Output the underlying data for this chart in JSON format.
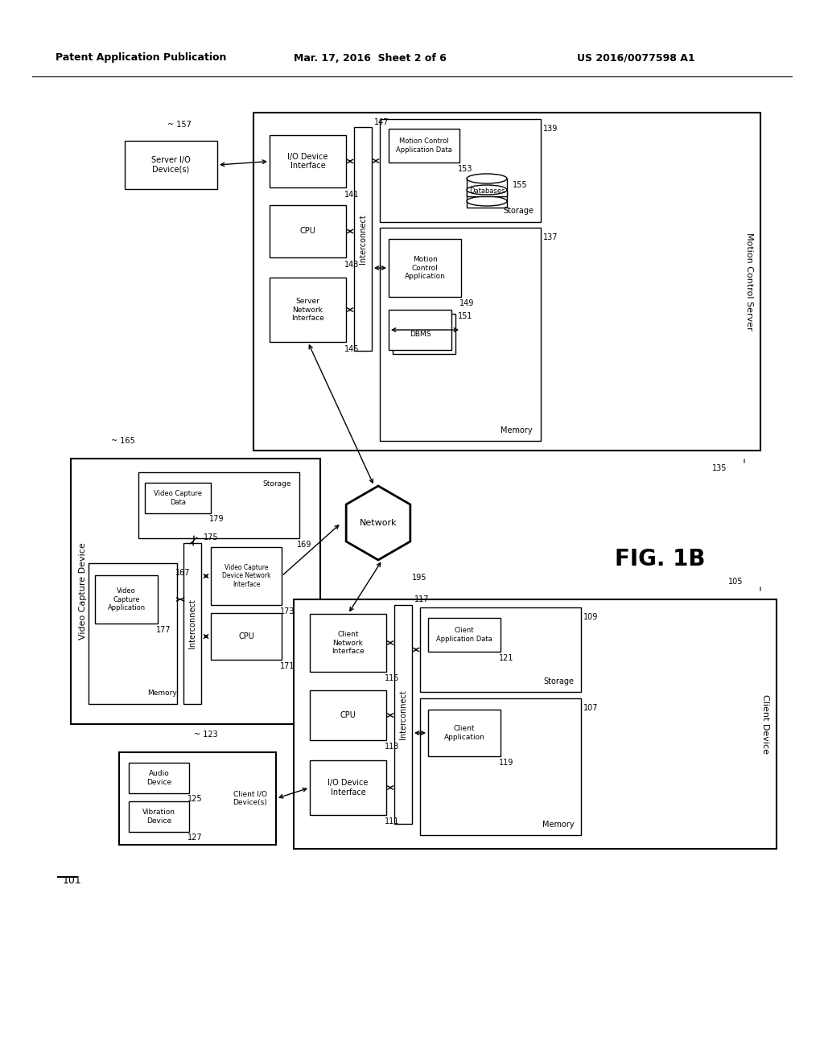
{
  "header_left": "Patent Application Publication",
  "header_mid": "Mar. 17, 2016  Sheet 2 of 6",
  "header_right": "US 2016/0077598 A1",
  "fig_label": "FIG. 1B",
  "bg_color": "#ffffff",
  "line_color": "#000000",
  "text_color": "#000000"
}
